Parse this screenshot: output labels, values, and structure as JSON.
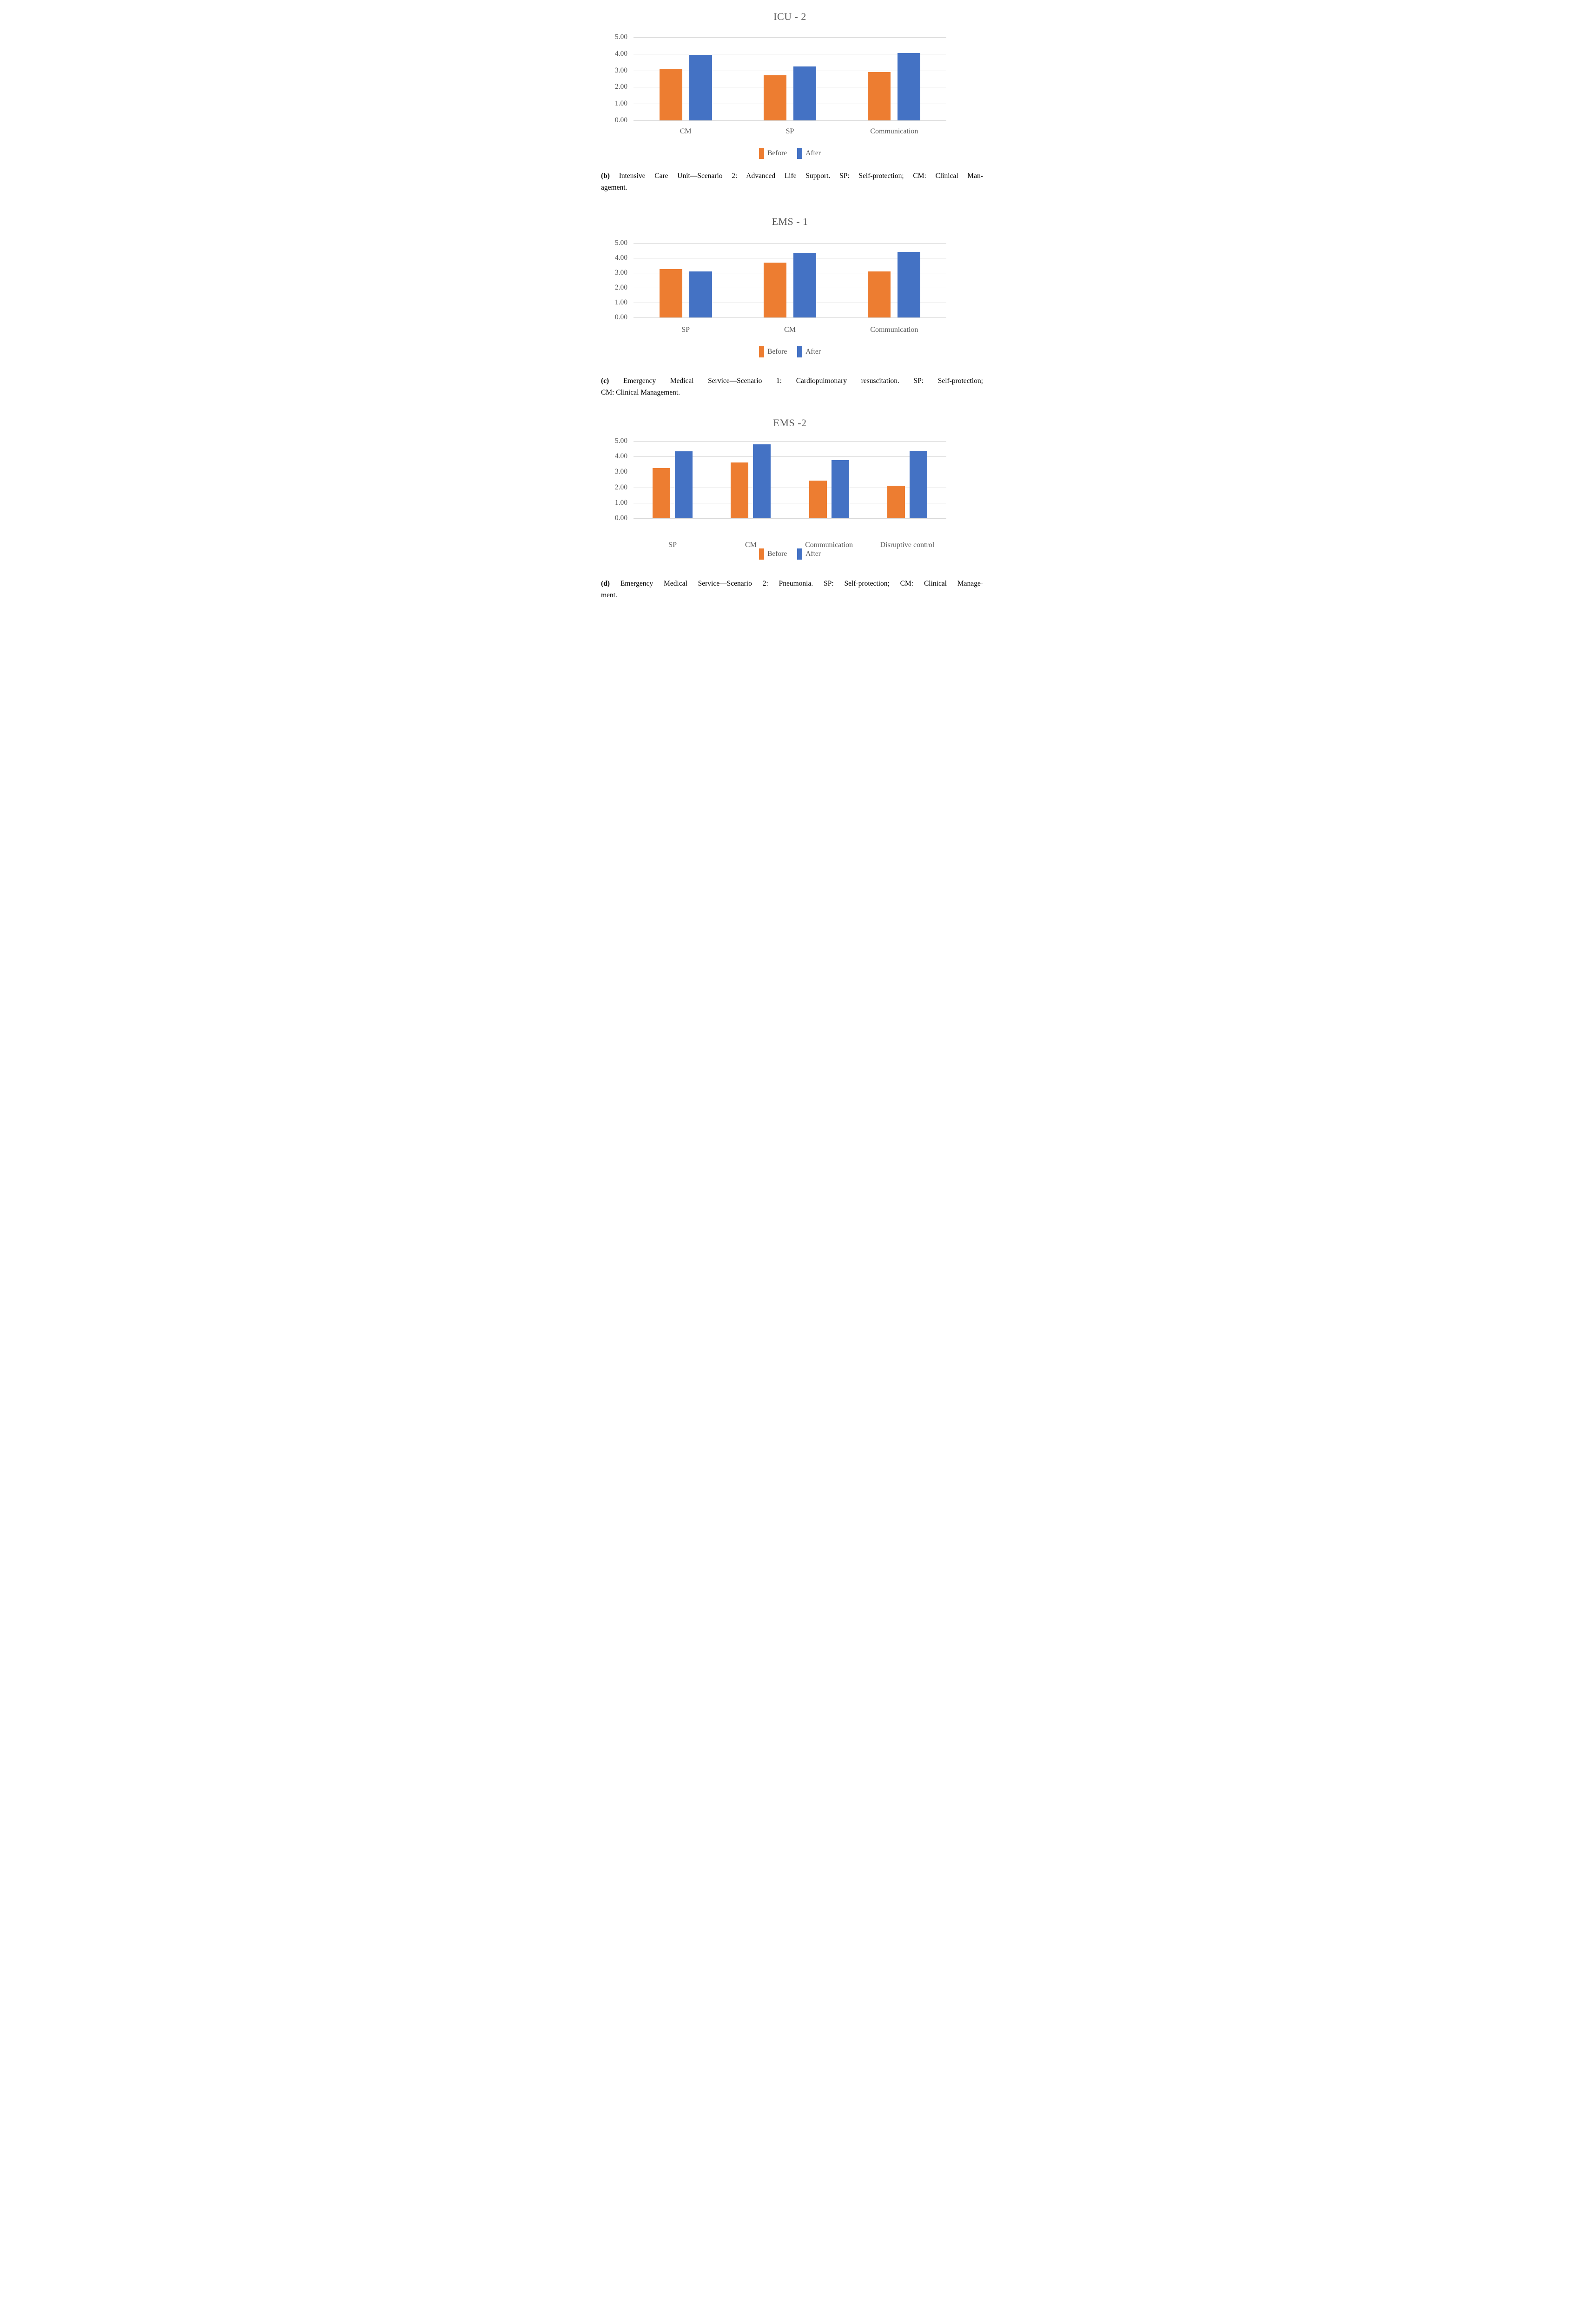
{
  "colors": {
    "before": "#ED7D31",
    "after": "#4472C4",
    "gridline": "#D9D9D9",
    "axis_text": "#595959",
    "title_text": "#595959",
    "caption_text": "#000000"
  },
  "legend": {
    "before_label": "Before",
    "after_label": "After"
  },
  "y_axis": {
    "ticks": [
      "5.00",
      "4.00",
      "3.00",
      "2.00",
      "1.00",
      "0.00"
    ]
  },
  "chart_data": [
    {
      "type": "bar",
      "title": "ICU - 2",
      "categories": [
        "CM",
        "SP",
        "Communication"
      ],
      "series": [
        {
          "name": "Before",
          "values": [
            3.1,
            2.7,
            2.9
          ]
        },
        {
          "name": "After",
          "values": [
            3.95,
            3.25,
            4.05
          ]
        }
      ],
      "xlabel": "",
      "ylabel": "",
      "ylim": [
        0,
        5
      ],
      "y_tick_step": 1.0,
      "grid": true,
      "legend_position": "bottom"
    },
    {
      "type": "bar",
      "title": "EMS - 1",
      "categories": [
        "SP",
        "CM",
        "Communication"
      ],
      "series": [
        {
          "name": "Before",
          "values": [
            3.25,
            3.7,
            3.1
          ]
        },
        {
          "name": "After",
          "values": [
            3.1,
            4.35,
            4.4
          ]
        }
      ],
      "xlabel": "",
      "ylabel": "",
      "ylim": [
        0,
        5
      ],
      "y_tick_step": 1.0,
      "grid": true,
      "legend_position": "bottom"
    },
    {
      "type": "bar",
      "title": "EMS -2",
      "categories": [
        "SP",
        "CM",
        "Communication",
        "Disruptive control"
      ],
      "series": [
        {
          "name": "Before",
          "values": [
            3.25,
            3.6,
            2.45,
            2.1
          ]
        },
        {
          "name": "After",
          "values": [
            4.35,
            4.8,
            3.78,
            4.38
          ]
        }
      ],
      "xlabel": "",
      "ylabel": "",
      "ylim": [
        0,
        5
      ],
      "y_tick_step": 1.0,
      "grid": true,
      "legend_position": "bottom"
    }
  ],
  "captions": [
    {
      "marker": "(b)",
      "line1": " Intensive Care Unit—Scenario 2: Advanced Life Support. SP: Self-protection; CM: Clinical Man-",
      "line2": "agement."
    },
    {
      "marker": "(c)",
      "line1": " Emergency Medical Service—Scenario 1: Cardiopulmonary resuscitation. SP: Self-protection;",
      "line2": "CM: Clinical Management."
    },
    {
      "marker": "(d)",
      "line1": " Emergency Medical Service—Scenario 2: Pneumonia. SP: Self-protection; CM: Clinical Manage-",
      "line2": "ment."
    }
  ]
}
